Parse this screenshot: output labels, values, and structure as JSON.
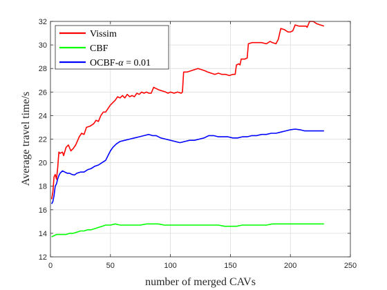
{
  "chart_data": {
    "type": "line",
    "xlabel": "number of merged CAVs",
    "ylabel": "Average travel time/s",
    "xlim": [
      0,
      250
    ],
    "ylim": [
      12,
      32
    ],
    "xticks": [
      0,
      50,
      100,
      150,
      200,
      250
    ],
    "yticks": [
      12,
      14,
      16,
      18,
      20,
      22,
      24,
      26,
      28,
      30,
      32
    ],
    "grid": true,
    "legend": {
      "position": "top-left",
      "entries": [
        {
          "label": "Vissim",
          "color": "#ff0000"
        },
        {
          "label": "CBF",
          "color": "#00ff00"
        },
        {
          "label_prefix": "OCBF-",
          "label_symbol": "α",
          "label_suffix": " = 0.01",
          "color": "#0000ff"
        }
      ]
    },
    "series": [
      {
        "name": "Vissim",
        "color": "#ff0000",
        "points": [
          [
            1,
            16.9
          ],
          [
            2,
            17.5
          ],
          [
            3,
            18.8
          ],
          [
            4,
            19.0
          ],
          [
            5,
            18.6
          ],
          [
            6,
            19.5
          ],
          [
            7,
            20.9
          ],
          [
            8,
            20.8
          ],
          [
            10,
            20.9
          ],
          [
            11,
            20.6
          ],
          [
            13,
            21.3
          ],
          [
            15,
            21.5
          ],
          [
            17,
            21.0
          ],
          [
            19,
            21.2
          ],
          [
            21,
            21.5
          ],
          [
            24,
            22.2
          ],
          [
            26,
            22.5
          ],
          [
            28,
            22.4
          ],
          [
            30,
            23.0
          ],
          [
            33,
            23.1
          ],
          [
            36,
            23.3
          ],
          [
            38,
            23.6
          ],
          [
            40,
            23.5
          ],
          [
            42,
            24.0
          ],
          [
            44,
            24.3
          ],
          [
            46,
            24.3
          ],
          [
            48,
            24.6
          ],
          [
            50,
            24.9
          ],
          [
            52,
            25.1
          ],
          [
            54,
            25.3
          ],
          [
            56,
            25.6
          ],
          [
            58,
            25.5
          ],
          [
            60,
            25.7
          ],
          [
            62,
            25.5
          ],
          [
            64,
            25.8
          ],
          [
            66,
            25.6
          ],
          [
            68,
            25.7
          ],
          [
            70,
            25.6
          ],
          [
            72,
            25.9
          ],
          [
            74,
            25.8
          ],
          [
            76,
            26.0
          ],
          [
            78,
            25.9
          ],
          [
            80,
            26.0
          ],
          [
            82,
            25.9
          ],
          [
            84,
            25.9
          ],
          [
            86,
            26.4
          ],
          [
            88,
            26.3
          ],
          [
            90,
            26.2
          ],
          [
            93,
            26.1
          ],
          [
            96,
            26.0
          ],
          [
            98,
            25.9
          ],
          [
            100,
            26.0
          ],
          [
            103,
            25.9
          ],
          [
            106,
            26.0
          ],
          [
            109,
            25.9
          ],
          [
            110,
            26.0
          ],
          [
            111,
            27.7
          ],
          [
            114,
            27.7
          ],
          [
            117,
            27.8
          ],
          [
            120,
            27.9
          ],
          [
            123,
            28.0
          ],
          [
            126,
            27.9
          ],
          [
            129,
            27.8
          ],
          [
            131,
            27.7
          ],
          [
            134,
            27.6
          ],
          [
            137,
            27.5
          ],
          [
            140,
            27.6
          ],
          [
            143,
            27.5
          ],
          [
            146,
            27.5
          ],
          [
            149,
            27.4
          ],
          [
            152,
            27.5
          ],
          [
            154,
            27.5
          ],
          [
            155,
            28.3
          ],
          [
            157,
            28.4
          ],
          [
            158,
            28.3
          ],
          [
            159,
            28.8
          ],
          [
            162,
            28.8
          ],
          [
            164,
            28.9
          ],
          [
            165,
            30.1
          ],
          [
            168,
            30.2
          ],
          [
            172,
            30.2
          ],
          [
            176,
            30.2
          ],
          [
            180,
            30.1
          ],
          [
            183,
            30.3
          ],
          [
            185,
            30.2
          ],
          [
            188,
            30.1
          ],
          [
            190,
            30.5
          ],
          [
            192,
            31.4
          ],
          [
            195,
            31.3
          ],
          [
            198,
            31.1
          ],
          [
            200,
            31.1
          ],
          [
            202,
            31.2
          ],
          [
            204,
            31.7
          ],
          [
            207,
            31.6
          ],
          [
            210,
            31.6
          ],
          [
            213,
            31.6
          ],
          [
            214,
            31.5
          ],
          [
            216,
            32.0
          ],
          [
            219,
            32.0
          ],
          [
            222,
            31.8
          ],
          [
            225,
            31.7
          ],
          [
            228,
            31.6
          ]
        ]
      },
      {
        "name": "CBF",
        "color": "#00ff00",
        "points": [
          [
            1,
            13.7
          ],
          [
            3,
            13.8
          ],
          [
            5,
            13.9
          ],
          [
            8,
            13.9
          ],
          [
            10,
            13.9
          ],
          [
            13,
            13.9
          ],
          [
            16,
            14.0
          ],
          [
            19,
            14.0
          ],
          [
            22,
            14.1
          ],
          [
            25,
            14.2
          ],
          [
            28,
            14.2
          ],
          [
            31,
            14.3
          ],
          [
            34,
            14.3
          ],
          [
            37,
            14.4
          ],
          [
            40,
            14.5
          ],
          [
            43,
            14.6
          ],
          [
            46,
            14.7
          ],
          [
            50,
            14.7
          ],
          [
            54,
            14.8
          ],
          [
            58,
            14.7
          ],
          [
            62,
            14.7
          ],
          [
            66,
            14.7
          ],
          [
            70,
            14.7
          ],
          [
            75,
            14.7
          ],
          [
            80,
            14.8
          ],
          [
            85,
            14.8
          ],
          [
            90,
            14.8
          ],
          [
            95,
            14.7
          ],
          [
            100,
            14.7
          ],
          [
            105,
            14.7
          ],
          [
            110,
            14.7
          ],
          [
            115,
            14.7
          ],
          [
            120,
            14.7
          ],
          [
            125,
            14.7
          ],
          [
            130,
            14.7
          ],
          [
            135,
            14.7
          ],
          [
            140,
            14.7
          ],
          [
            145,
            14.6
          ],
          [
            150,
            14.6
          ],
          [
            155,
            14.6
          ],
          [
            160,
            14.7
          ],
          [
            165,
            14.7
          ],
          [
            170,
            14.7
          ],
          [
            175,
            14.7
          ],
          [
            180,
            14.7
          ],
          [
            185,
            14.8
          ],
          [
            190,
            14.8
          ],
          [
            195,
            14.8
          ],
          [
            200,
            14.8
          ],
          [
            205,
            14.8
          ],
          [
            210,
            14.8
          ],
          [
            215,
            14.8
          ],
          [
            220,
            14.8
          ],
          [
            225,
            14.8
          ],
          [
            228,
            14.8
          ]
        ]
      },
      {
        "name": "OCBF-α = 0.01",
        "color": "#0000ff",
        "points": [
          [
            1,
            16.5
          ],
          [
            2,
            16.7
          ],
          [
            3,
            17.2
          ],
          [
            4,
            18.0
          ],
          [
            5,
            18.2
          ],
          [
            6,
            18.6
          ],
          [
            7,
            18.9
          ],
          [
            8,
            19.1
          ],
          [
            10,
            19.3
          ],
          [
            12,
            19.2
          ],
          [
            14,
            19.1
          ],
          [
            16,
            19.1
          ],
          [
            18,
            19.0
          ],
          [
            20,
            18.95
          ],
          [
            22,
            19.1
          ],
          [
            25,
            19.2
          ],
          [
            28,
            19.2
          ],
          [
            31,
            19.4
          ],
          [
            34,
            19.5
          ],
          [
            37,
            19.7
          ],
          [
            40,
            19.8
          ],
          [
            43,
            20.0
          ],
          [
            46,
            20.2
          ],
          [
            48,
            20.6
          ],
          [
            50,
            21.0
          ],
          [
            52,
            21.3
          ],
          [
            55,
            21.6
          ],
          [
            58,
            21.8
          ],
          [
            62,
            21.9
          ],
          [
            66,
            22.0
          ],
          [
            70,
            22.1
          ],
          [
            74,
            22.2
          ],
          [
            78,
            22.3
          ],
          [
            82,
            22.4
          ],
          [
            85,
            22.3
          ],
          [
            88,
            22.3
          ],
          [
            92,
            22.1
          ],
          [
            96,
            22.0
          ],
          [
            100,
            21.9
          ],
          [
            104,
            21.8
          ],
          [
            108,
            21.7
          ],
          [
            112,
            21.8
          ],
          [
            116,
            21.9
          ],
          [
            120,
            21.9
          ],
          [
            124,
            22.0
          ],
          [
            128,
            22.1
          ],
          [
            132,
            22.3
          ],
          [
            136,
            22.3
          ],
          [
            140,
            22.2
          ],
          [
            144,
            22.2
          ],
          [
            148,
            22.2
          ],
          [
            152,
            22.1
          ],
          [
            156,
            22.1
          ],
          [
            160,
            22.2
          ],
          [
            164,
            22.2
          ],
          [
            168,
            22.3
          ],
          [
            172,
            22.3
          ],
          [
            176,
            22.4
          ],
          [
            180,
            22.4
          ],
          [
            184,
            22.5
          ],
          [
            188,
            22.5
          ],
          [
            192,
            22.6
          ],
          [
            196,
            22.7
          ],
          [
            200,
            22.8
          ],
          [
            204,
            22.85
          ],
          [
            208,
            22.8
          ],
          [
            212,
            22.7
          ],
          [
            216,
            22.7
          ],
          [
            220,
            22.7
          ],
          [
            224,
            22.7
          ],
          [
            228,
            22.7
          ]
        ]
      }
    ]
  }
}
